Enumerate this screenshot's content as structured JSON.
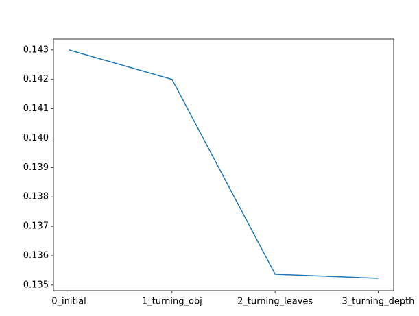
{
  "chart_data": {
    "type": "line",
    "categories": [
      "0_initial",
      "1_turning_obj",
      "2_turning_leaves",
      "3_turning_depth"
    ],
    "series": [
      {
        "color": "#1f77b4",
        "values": [
          0.143,
          0.142,
          0.13537,
          0.13523
        ]
      }
    ],
    "ylim": [
      0.13481,
      0.14337
    ],
    "yticks": [
      0.135,
      0.136,
      0.137,
      0.138,
      0.139,
      {
        "value": 0.14,
        "label": "0.140"
      },
      0.141,
      0.142,
      0.143
    ]
  }
}
